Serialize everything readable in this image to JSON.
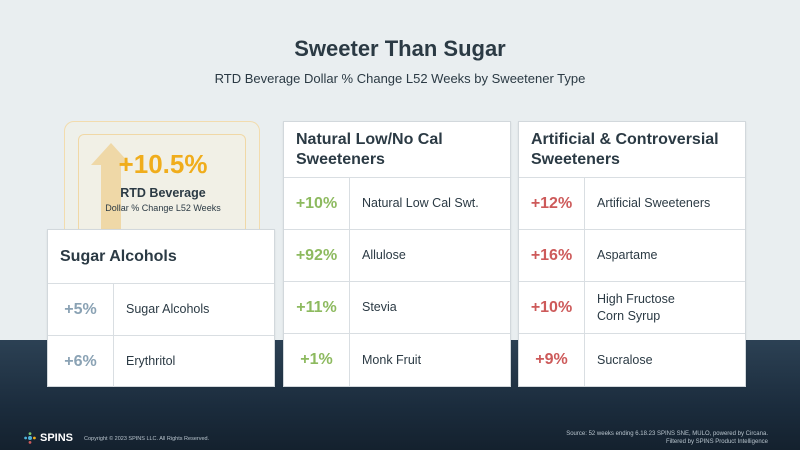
{
  "title": "Sweeter Than Sugar",
  "subtitle": "RTD Beverage Dollar % Change L52 Weeks by Sweetener Type",
  "hero": {
    "value": "+10.5%",
    "label": "RTD Beverage",
    "sublabel": "Dollar % Change L52 Weeks"
  },
  "colors": {
    "sugar_alcohols": "#8aa2b4",
    "natural": "#8dba5f",
    "artificial": "#cd5a5a",
    "hero": "#f0ad1c"
  },
  "chart_data": {
    "type": "table",
    "title": "Sweeter Than Sugar",
    "subtitle": "RTD Beverage Dollar % Change L52 Weeks by Sweetener Type",
    "overall": {
      "name": "RTD Beverage",
      "value": 10.5
    },
    "groups": [
      {
        "name": "Sugar Alcohols",
        "rows": [
          {
            "pct": "+5%",
            "label": "Sugar Alcohols",
            "value": 5
          },
          {
            "pct": "+6%",
            "label": "Erythritol",
            "value": 6
          }
        ]
      },
      {
        "name": "Natural Low/No Cal Sweeteners",
        "rows": [
          {
            "pct": "+10%",
            "label": "Natural Low Cal Swt.",
            "value": 10
          },
          {
            "pct": "+92%",
            "label": "Allulose",
            "value": 92
          },
          {
            "pct": "+11%",
            "label": "Stevia",
            "value": 11
          },
          {
            "pct": "+1%",
            "label": "Monk Fruit",
            "value": 1
          }
        ]
      },
      {
        "name": "Artificial & Controversial Sweeteners",
        "rows": [
          {
            "pct": "+12%",
            "label": "Artificial Sweeteners",
            "value": 12
          },
          {
            "pct": "+16%",
            "label": "Aspartame",
            "value": 16
          },
          {
            "pct": "+10%",
            "label": "High Fructose Corn Syrup",
            "value": 10
          },
          {
            "pct": "+9%",
            "label": "Sucralose",
            "value": 9
          }
        ]
      }
    ]
  },
  "footer": {
    "logo": "SPINS",
    "copyright": "Copyright © 2023 SPINS LLC. All Rights Reserved.",
    "source_line1": "Source: 52 weeks ending 6.18.23 SPINS  SNE,  MULO,  powered by Circana.",
    "source_line2": "Filtered by SPINS  Product Intelligence"
  }
}
